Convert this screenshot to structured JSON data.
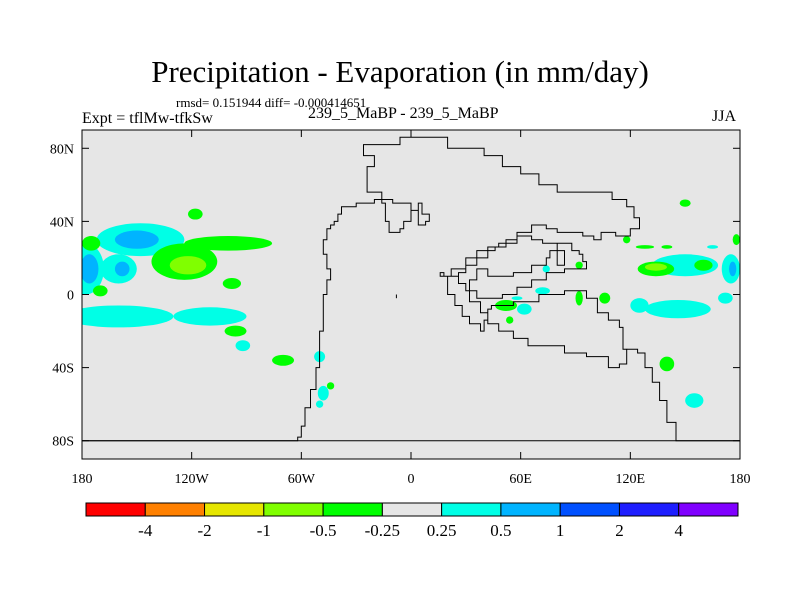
{
  "chart_data": {
    "type": "filled_contour_map",
    "title": "Precipitation - Evaporation (in mm/day)",
    "stats_text": "rmsd= 0.151944 diff= -0.000414651",
    "left_string": "Expt = tflMw-tfkSw",
    "center_string": "239_5_MaBP - 239_5_MaBP",
    "right_string": "JJA",
    "x_axis": {
      "range": [
        -180,
        180
      ],
      "ticks": [
        -180,
        -120,
        -60,
        0,
        60,
        120,
        180
      ],
      "tick_labels": [
        "180",
        "120W",
        "60W",
        "0",
        "60E",
        "120E",
        "180"
      ]
    },
    "y_axis": {
      "range": [
        -90,
        90
      ],
      "ticks": [
        -80,
        -40,
        0,
        40,
        80
      ],
      "tick_labels": [
        "80S",
        "40S",
        "0",
        "40N",
        "80N"
      ]
    },
    "background_color": "#e6e6e6",
    "colorbar": {
      "levels": [
        "-4",
        "-2",
        "-1",
        "-0.5",
        "-0.25",
        "0.25",
        "0.5",
        "1",
        "2",
        "4"
      ],
      "colors": [
        "#ff0000",
        "#ff8000",
        "#e6e600",
        "#80ff00",
        "#00ff00",
        "#e6e6e6",
        "#00ffe6",
        "#00b4ff",
        "#0050ff",
        "#1e1eff",
        "#8000ff"
      ]
    },
    "coastline": [
      [
        [
          -180,
          -80
        ],
        [
          -62,
          -80
        ],
        [
          -62,
          -78
        ],
        [
          -60,
          -78
        ],
        [
          -60,
          -72
        ],
        [
          -58,
          -72
        ],
        [
          -58,
          -62
        ],
        [
          -55,
          -62
        ],
        [
          -55,
          -52
        ],
        [
          -52,
          -52
        ],
        [
          -52,
          -40
        ],
        [
          -50,
          -40
        ],
        [
          -50,
          -20
        ],
        [
          -48,
          -20
        ],
        [
          -48,
          0
        ],
        [
          -46,
          0
        ],
        [
          -46,
          8
        ],
        [
          -44,
          8
        ],
        [
          -44,
          14
        ],
        [
          -46,
          14
        ],
        [
          -46,
          22
        ],
        [
          -48,
          22
        ],
        [
          -48,
          30
        ],
        [
          -46,
          30
        ],
        [
          -46,
          36
        ],
        [
          -44,
          36
        ],
        [
          -44,
          38
        ],
        [
          -42,
          38
        ],
        [
          -42,
          40
        ],
        [
          -40,
          40
        ],
        [
          -40,
          44
        ],
        [
          -38,
          44
        ],
        [
          -38,
          48
        ],
        [
          -30,
          48
        ],
        [
          -30,
          50
        ],
        [
          -20,
          50
        ],
        [
          -20,
          52
        ],
        [
          -10,
          52
        ],
        [
          -10,
          50
        ],
        [
          0,
          50
        ],
        [
          0,
          46
        ],
        [
          4,
          46
        ],
        [
          4,
          50
        ],
        [
          6,
          50
        ],
        [
          6,
          44
        ],
        [
          10,
          44
        ],
        [
          10,
          40
        ],
        [
          8,
          40
        ],
        [
          8,
          38
        ],
        [
          4,
          38
        ],
        [
          4,
          46
        ],
        [
          0,
          46
        ],
        [
          0,
          40
        ],
        [
          -4,
          40
        ],
        [
          -4,
          36
        ],
        [
          -6,
          36
        ],
        [
          -6,
          34
        ],
        [
          -12,
          34
        ],
        [
          -12,
          40
        ],
        [
          -14,
          40
        ],
        [
          -14,
          50
        ],
        [
          -16,
          50
        ],
        [
          -16,
          56
        ],
        [
          -24,
          56
        ],
        [
          -24,
          70
        ],
        [
          -20,
          70
        ],
        [
          -20,
          76
        ],
        [
          -26,
          76
        ],
        [
          -26,
          82
        ],
        [
          -6,
          82
        ],
        [
          -6,
          86
        ],
        [
          20,
          86
        ],
        [
          20,
          80
        ],
        [
          40,
          80
        ],
        [
          40,
          76
        ],
        [
          50,
          76
        ],
        [
          50,
          70
        ],
        [
          60,
          70
        ],
        [
          60,
          66
        ],
        [
          70,
          66
        ],
        [
          70,
          60
        ],
        [
          80,
          60
        ],
        [
          80,
          56
        ],
        [
          110,
          56
        ],
        [
          110,
          52
        ],
        [
          118,
          52
        ],
        [
          118,
          48
        ],
        [
          122,
          48
        ],
        [
          122,
          42
        ],
        [
          125,
          42
        ],
        [
          125,
          36
        ],
        [
          120,
          36
        ],
        [
          120,
          32
        ],
        [
          112,
          32
        ],
        [
          112,
          34
        ],
        [
          104,
          34
        ],
        [
          104,
          30
        ],
        [
          100,
          30
        ],
        [
          100,
          32
        ],
        [
          94,
          32
        ],
        [
          94,
          34
        ],
        [
          80,
          34
        ],
        [
          80,
          36
        ],
        [
          74,
          36
        ],
        [
          74,
          38
        ],
        [
          66,
          38
        ],
        [
          66,
          34
        ],
        [
          58,
          34
        ],
        [
          58,
          30
        ],
        [
          52,
          30
        ],
        [
          52,
          26
        ],
        [
          46,
          26
        ],
        [
          46,
          24
        ],
        [
          42,
          24
        ],
        [
          42,
          20
        ],
        [
          36,
          20
        ],
        [
          36,
          16
        ],
        [
          30,
          16
        ],
        [
          30,
          12
        ],
        [
          26,
          12
        ],
        [
          26,
          10
        ],
        [
          18,
          10
        ],
        [
          18,
          12
        ],
        [
          16,
          12
        ],
        [
          16,
          10
        ],
        [
          20,
          10
        ],
        [
          20,
          0
        ],
        [
          24,
          0
        ],
        [
          24,
          -6
        ],
        [
          28,
          -6
        ],
        [
          28,
          -12
        ],
        [
          32,
          -12
        ],
        [
          32,
          -16
        ],
        [
          38,
          -16
        ],
        [
          38,
          -20
        ],
        [
          40,
          -20
        ],
        [
          40,
          -14
        ],
        [
          42,
          -14
        ],
        [
          42,
          -8
        ],
        [
          44,
          -8
        ],
        [
          44,
          -6
        ],
        [
          56,
          -6
        ],
        [
          56,
          -4
        ],
        [
          70,
          -4
        ],
        [
          70,
          0
        ],
        [
          84,
          0
        ],
        [
          84,
          2
        ],
        [
          96,
          2
        ],
        [
          96,
          -2
        ],
        [
          102,
          -2
        ],
        [
          102,
          -10
        ],
        [
          108,
          -10
        ],
        [
          108,
          -14
        ],
        [
          114,
          -14
        ],
        [
          114,
          -18
        ],
        [
          116,
          -18
        ],
        [
          116,
          -30
        ],
        [
          118,
          -30
        ],
        [
          118,
          -38
        ],
        [
          114,
          -38
        ],
        [
          114,
          -40
        ],
        [
          108,
          -40
        ],
        [
          108,
          -34
        ],
        [
          96,
          -34
        ],
        [
          96,
          -32
        ],
        [
          84,
          -32
        ],
        [
          84,
          -28
        ],
        [
          64,
          -28
        ],
        [
          64,
          -24
        ],
        [
          56,
          -24
        ],
        [
          56,
          -20
        ],
        [
          48,
          -20
        ],
        [
          48,
          -16
        ],
        [
          42,
          -16
        ],
        [
          42,
          -10
        ],
        [
          38,
          -10
        ],
        [
          38,
          -4
        ],
        [
          32,
          -4
        ],
        [
          32,
          8
        ],
        [
          36,
          8
        ],
        [
          36,
          14
        ],
        [
          42,
          14
        ],
        [
          42,
          10
        ],
        [
          56,
          10
        ],
        [
          56,
          12
        ],
        [
          66,
          12
        ],
        [
          66,
          16
        ],
        [
          74,
          16
        ],
        [
          74,
          20
        ],
        [
          76,
          20
        ],
        [
          76,
          24
        ],
        [
          80,
          24
        ],
        [
          80,
          28
        ],
        [
          88,
          28
        ],
        [
          88,
          24
        ],
        [
          92,
          24
        ],
        [
          92,
          22
        ],
        [
          94,
          22
        ],
        [
          94,
          18
        ],
        [
          96,
          18
        ],
        [
          96,
          14
        ],
        [
          84,
          14
        ],
        [
          84,
          12
        ],
        [
          74,
          12
        ],
        [
          74,
          8
        ],
        [
          66,
          8
        ],
        [
          66,
          4
        ],
        [
          58,
          4
        ],
        [
          58,
          0
        ],
        [
          50,
          0
        ],
        [
          50,
          -2
        ],
        [
          36,
          -2
        ],
        [
          36,
          2
        ],
        [
          30,
          2
        ],
        [
          30,
          6
        ],
        [
          26,
          6
        ],
        [
          26,
          10
        ],
        [
          22,
          10
        ],
        [
          22,
          14
        ],
        [
          30,
          14
        ],
        [
          30,
          20
        ],
        [
          36,
          20
        ],
        [
          36,
          24
        ],
        [
          42,
          24
        ],
        [
          42,
          26
        ],
        [
          48,
          26
        ],
        [
          48,
          28
        ],
        [
          58,
          28
        ],
        [
          58,
          32
        ],
        [
          66,
          32
        ],
        [
          66,
          30
        ],
        [
          72,
          30
        ],
        [
          72,
          28
        ],
        [
          80,
          28
        ],
        [
          80,
          16
        ],
        [
          84,
          16
        ],
        [
          84,
          24
        ],
        [
          80,
          24
        ],
        [
          80,
          28
        ]
      ],
      [
        [
          -180,
          -80
        ],
        [
          180,
          -80
        ]
      ],
      [
        [
          180,
          -80
        ],
        [
          145,
          -80
        ],
        [
          145,
          -70
        ],
        [
          140,
          -70
        ],
        [
          140,
          -58
        ],
        [
          136,
          -58
        ],
        [
          136,
          -48
        ],
        [
          132,
          -48
        ],
        [
          132,
          -40
        ],
        [
          128,
          -40
        ],
        [
          128,
          -32
        ],
        [
          124,
          -32
        ],
        [
          124,
          -30
        ],
        [
          118,
          -30
        ]
      ],
      [
        [
          -8,
          -2
        ],
        [
          -8,
          0
        ]
      ]
    ],
    "anomalies": [
      {
        "level": "0.25",
        "cx": -148,
        "cy": 30,
        "rx": 24,
        "ry": 9
      },
      {
        "level": "0.5",
        "cx": -150,
        "cy": 30,
        "rx": 12,
        "ry": 5
      },
      {
        "level": "0.25",
        "cx": -178,
        "cy": 14,
        "rx": 10,
        "ry": 14
      },
      {
        "level": "0.5",
        "cx": -176,
        "cy": 14,
        "rx": 5,
        "ry": 8
      },
      {
        "level": "0.25",
        "cx": -160,
        "cy": 14,
        "rx": 10,
        "ry": 8
      },
      {
        "level": "0.5",
        "cx": -158,
        "cy": 14,
        "rx": 4,
        "ry": 4
      },
      {
        "level": "-0.25",
        "cx": -124,
        "cy": 18,
        "rx": 18,
        "ry": 10
      },
      {
        "level": "-0.5",
        "cx": -122,
        "cy": 16,
        "rx": 10,
        "ry": 5
      },
      {
        "level": "-0.25",
        "cx": -100,
        "cy": 28,
        "rx": 24,
        "ry": 4
      },
      {
        "level": "-0.25",
        "cx": -175,
        "cy": 28,
        "rx": 5,
        "ry": 4
      },
      {
        "level": "-0.25",
        "cx": -170,
        "cy": 2,
        "rx": 4,
        "ry": 3
      },
      {
        "level": "-0.25",
        "cx": -118,
        "cy": 44,
        "rx": 4,
        "ry": 3
      },
      {
        "level": "-0.25",
        "cx": -98,
        "cy": 6,
        "rx": 5,
        "ry": 3
      },
      {
        "level": "0.25",
        "cx": -160,
        "cy": -12,
        "rx": 30,
        "ry": 6
      },
      {
        "level": "0.25",
        "cx": -110,
        "cy": -12,
        "rx": 20,
        "ry": 5
      },
      {
        "level": "0.25",
        "cx": -152,
        "cy": -10,
        "rx": 8,
        "ry": 3
      },
      {
        "level": "-0.25",
        "cx": -96,
        "cy": -20,
        "rx": 6,
        "ry": 3
      },
      {
        "level": "-0.25",
        "cx": -70,
        "cy": -36,
        "rx": 6,
        "ry": 3
      },
      {
        "level": "0.25",
        "cx": -92,
        "cy": -28,
        "rx": 4,
        "ry": 3
      },
      {
        "level": "0.25",
        "cx": -50,
        "cy": -34,
        "rx": 3,
        "ry": 3
      },
      {
        "level": "0.25",
        "cx": -48,
        "cy": -54,
        "rx": 3,
        "ry": 4
      },
      {
        "level": "0.25",
        "cx": -50,
        "cy": -60,
        "rx": 2,
        "ry": 2
      },
      {
        "level": "-0.25",
        "cx": -44,
        "cy": -50,
        "rx": 2,
        "ry": 2
      },
      {
        "level": "0.25",
        "cx": 72,
        "cy": 2,
        "rx": 4,
        "ry": 2
      },
      {
        "level": "-0.25",
        "cx": 52,
        "cy": -6,
        "rx": 6,
        "ry": 3
      },
      {
        "level": "0.25",
        "cx": 62,
        "cy": -8,
        "rx": 4,
        "ry": 3
      },
      {
        "level": "-0.25",
        "cx": 54,
        "cy": -14,
        "rx": 2,
        "ry": 2
      },
      {
        "level": "-0.25",
        "cx": 92,
        "cy": -2,
        "rx": 2,
        "ry": 4
      },
      {
        "level": "-0.25",
        "cx": 92,
        "cy": 16,
        "rx": 2,
        "ry": 2
      },
      {
        "level": "0.25",
        "cx": 150,
        "cy": 16,
        "rx": 18,
        "ry": 6
      },
      {
        "level": "-0.25",
        "cx": 134,
        "cy": 14,
        "rx": 10,
        "ry": 4
      },
      {
        "level": "-0.5",
        "cx": 134,
        "cy": 15,
        "rx": 6,
        "ry": 2
      },
      {
        "level": "0.25",
        "cx": 175,
        "cy": 14,
        "rx": 5,
        "ry": 8
      },
      {
        "level": "0.5",
        "cx": 176,
        "cy": 14,
        "rx": 2,
        "ry": 4
      },
      {
        "level": "-0.25",
        "cx": 160,
        "cy": 16,
        "rx": 5,
        "ry": 3
      },
      {
        "level": "0.25",
        "cx": 146,
        "cy": -8,
        "rx": 18,
        "ry": 5
      },
      {
        "level": "0.25",
        "cx": 125,
        "cy": -6,
        "rx": 5,
        "ry": 4
      },
      {
        "level": "-0.25",
        "cx": 106,
        "cy": -2,
        "rx": 3,
        "ry": 3
      },
      {
        "level": "0.25",
        "cx": 172,
        "cy": -2,
        "rx": 4,
        "ry": 3
      },
      {
        "level": "-0.25",
        "cx": 140,
        "cy": -38,
        "rx": 4,
        "ry": 4
      },
      {
        "level": "0.25",
        "cx": 155,
        "cy": -58,
        "rx": 5,
        "ry": 4
      },
      {
        "level": "-0.25",
        "cx": 150,
        "cy": 50,
        "rx": 3,
        "ry": 2
      },
      {
        "level": "-0.25",
        "cx": 118,
        "cy": 30,
        "rx": 2,
        "ry": 2
      },
      {
        "level": "0.25",
        "cx": 74,
        "cy": 14,
        "rx": 2,
        "ry": 2
      },
      {
        "level": "-0.25",
        "cx": 128,
        "cy": 26,
        "rx": 5,
        "ry": 1
      },
      {
        "level": "-0.25",
        "cx": 140,
        "cy": 26,
        "rx": 3,
        "ry": 1
      },
      {
        "level": "0.25",
        "cx": 165,
        "cy": 26,
        "rx": 3,
        "ry": 1
      },
      {
        "level": "0.25",
        "cx": 58,
        "cy": -2,
        "rx": 3,
        "ry": 1
      },
      {
        "level": "-0.25",
        "cx": 178,
        "cy": 30,
        "rx": 2,
        "ry": 3
      }
    ]
  }
}
